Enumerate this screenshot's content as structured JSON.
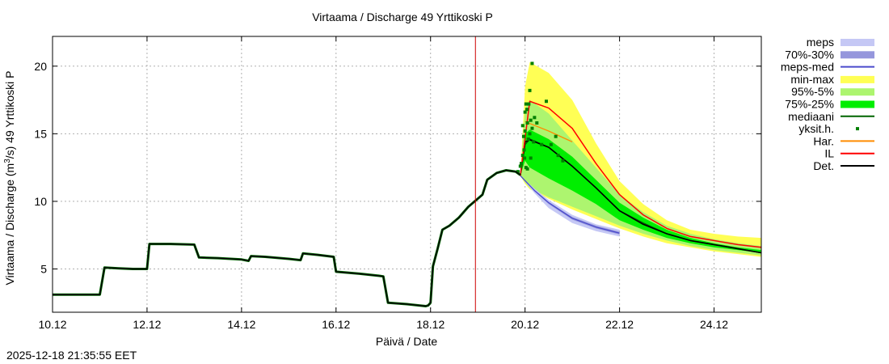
{
  "chart_data": {
    "type": "area",
    "title": "Virtaama / Discharge  49 Yrttikoski P",
    "xlabel": "Päivä / Date",
    "ylabel_main": "Virtaama / Discharge (m",
    "ylabel_sup": "3",
    "ylabel_tail": "/s)  49 Yrttikoski P",
    "x_range_days": [
      10,
      25
    ],
    "ylim": [
      1.8,
      22.2
    ],
    "grid": true,
    "x_ticks": [
      {
        "day": 10,
        "label": "10.12"
      },
      {
        "day": 12,
        "label": "12.12"
      },
      {
        "day": 14,
        "label": "14.12"
      },
      {
        "day": 16,
        "label": "16.12"
      },
      {
        "day": 18,
        "label": "18.12"
      },
      {
        "day": 20,
        "label": "20.12"
      },
      {
        "day": 22,
        "label": "22.12"
      },
      {
        "day": 24,
        "label": "24.12"
      }
    ],
    "y_ticks": [
      {
        "value": 5,
        "label": "5"
      },
      {
        "value": 10,
        "label": "10"
      },
      {
        "value": 15,
        "label": "15"
      },
      {
        "value": 20,
        "label": "20"
      }
    ],
    "forecast_start_day": 19.9,
    "colors": {
      "meps": "#c5c8f5",
      "meps_inner": "#9596dc",
      "meps_med": "#4a4acc",
      "minmax": "#ffff55",
      "p95_5": "#adf56f",
      "p75_25": "#00ee00",
      "median": "#006400",
      "single": "#008000",
      "har": "#ff8c00",
      "il": "#ff0000",
      "det": "#000000",
      "now": "#cc0000"
    },
    "legend": [
      {
        "label": "meps",
        "key": "meps",
        "style": "box"
      },
      {
        "label": "70%-30%",
        "key": "meps_inner",
        "style": "box"
      },
      {
        "label": "meps-med",
        "key": "meps_med",
        "style": "line"
      },
      {
        "label": "min-max",
        "key": "minmax",
        "style": "box"
      },
      {
        "label": "95%-5%",
        "key": "p95_5",
        "style": "box"
      },
      {
        "label": "75%-25%",
        "key": "p75_25",
        "style": "box"
      },
      {
        "label": "mediaani",
        "key": "median",
        "style": "line"
      },
      {
        "label": "yksit.h.",
        "key": "single",
        "style": "dot"
      },
      {
        "label": "Har.",
        "key": "har",
        "style": "line"
      },
      {
        "label": "IL",
        "key": "il",
        "style": "line"
      },
      {
        "label": "Det.",
        "key": "det",
        "style": "line"
      }
    ],
    "observed": [
      [
        10.0,
        3.1
      ],
      [
        10.95,
        3.1
      ],
      [
        11.0,
        3.1
      ],
      [
        11.1,
        5.1
      ],
      [
        11.4,
        5.05
      ],
      [
        11.7,
        5.0
      ],
      [
        12.0,
        5.0
      ],
      [
        12.05,
        6.85
      ],
      [
        12.5,
        6.85
      ],
      [
        13.0,
        6.8
      ],
      [
        13.1,
        5.85
      ],
      [
        13.5,
        5.8
      ],
      [
        14.0,
        5.7
      ],
      [
        14.15,
        5.6
      ],
      [
        14.2,
        5.95
      ],
      [
        14.5,
        5.9
      ],
      [
        15.0,
        5.75
      ],
      [
        15.25,
        5.65
      ],
      [
        15.3,
        6.15
      ],
      [
        15.6,
        6.05
      ],
      [
        15.95,
        5.9
      ],
      [
        16.0,
        4.8
      ],
      [
        16.5,
        4.65
      ],
      [
        16.9,
        4.5
      ],
      [
        17.0,
        4.45
      ],
      [
        17.1,
        2.5
      ],
      [
        17.5,
        2.4
      ],
      [
        17.9,
        2.25
      ],
      [
        17.95,
        2.3
      ],
      [
        18.0,
        2.5
      ],
      [
        18.05,
        5.2
      ],
      [
        18.15,
        6.5
      ],
      [
        18.25,
        7.9
      ],
      [
        18.4,
        8.2
      ],
      [
        18.6,
        8.8
      ],
      [
        18.8,
        9.6
      ],
      [
        19.0,
        10.2
      ],
      [
        19.1,
        10.5
      ],
      [
        19.2,
        11.6
      ],
      [
        19.4,
        12.1
      ],
      [
        19.6,
        12.3
      ],
      [
        19.8,
        12.2
      ],
      [
        19.9,
        11.95
      ]
    ],
    "minmax_band": {
      "x": [
        19.9,
        20.0,
        20.1,
        20.5,
        21.0,
        21.5,
        22.0,
        22.5,
        23.0,
        23.5,
        24.0,
        24.5,
        25.0
      ],
      "lo": [
        11.9,
        11.3,
        10.9,
        10.2,
        9.4,
        8.7,
        8.0,
        7.4,
        6.9,
        6.6,
        6.3,
        6.1,
        5.9
      ],
      "hi": [
        11.9,
        18.5,
        20.3,
        19.5,
        17.5,
        14.3,
        11.5,
        9.8,
        8.6,
        7.9,
        7.6,
        7.4,
        7.3
      ]
    },
    "p95_5_band": {
      "x": [
        19.9,
        20.0,
        20.1,
        20.5,
        21.0,
        21.5,
        22.0,
        22.5,
        23.0,
        23.5,
        24.0,
        24.5,
        25.0
      ],
      "lo": [
        11.9,
        11.4,
        11.0,
        10.3,
        9.6,
        8.9,
        8.2,
        7.6,
        7.1,
        6.7,
        6.4,
        6.2,
        6.0
      ],
      "hi": [
        11.9,
        16.8,
        17.5,
        16.5,
        14.5,
        12.5,
        10.5,
        9.2,
        8.2,
        7.6,
        7.2,
        6.9,
        6.7
      ]
    },
    "p75_25_band": {
      "x": [
        19.9,
        20.0,
        20.1,
        20.5,
        21.0,
        21.5,
        22.0,
        22.5,
        23.0,
        23.5,
        24.0,
        24.5,
        25.0
      ],
      "lo": [
        11.9,
        13.0,
        12.5,
        11.7,
        10.8,
        9.8,
        8.6,
        7.9,
        7.3,
        6.9,
        6.6,
        6.4,
        6.2
      ],
      "hi": [
        11.9,
        15.0,
        15.3,
        14.6,
        13.3,
        11.6,
        9.9,
        8.8,
        7.9,
        7.3,
        6.9,
        6.6,
        6.4
      ]
    },
    "meps_band": {
      "x": [
        19.9,
        20.2,
        20.5,
        21.0,
        21.5,
        22.0
      ],
      "lo": [
        11.9,
        10.6,
        9.5,
        8.4,
        7.8,
        7.4
      ],
      "hi": [
        11.9,
        10.95,
        10.1,
        9.0,
        8.3,
        7.9
      ]
    },
    "meps_inner_band": {
      "x": [
        19.9,
        20.2,
        20.5,
        21.0,
        21.5,
        22.0
      ],
      "lo": [
        11.9,
        10.75,
        9.8,
        8.65,
        8.0,
        7.55
      ],
      "hi": [
        11.9,
        10.85,
        9.95,
        8.85,
        8.2,
        7.75
      ]
    },
    "meps_med": [
      [
        19.9,
        11.9
      ],
      [
        20.2,
        10.8
      ],
      [
        20.5,
        9.9
      ],
      [
        21.0,
        8.75
      ],
      [
        21.5,
        8.1
      ],
      [
        22.0,
        7.65
      ]
    ],
    "median": [
      [
        19.9,
        11.9
      ],
      [
        20.0,
        14.2
      ],
      [
        20.1,
        14.6
      ],
      [
        20.5,
        14.0
      ],
      [
        21.0,
        12.6
      ],
      [
        21.5,
        11.0
      ],
      [
        22.0,
        9.3
      ],
      [
        22.5,
        8.4
      ],
      [
        23.0,
        7.6
      ],
      [
        23.5,
        7.1
      ],
      [
        24.0,
        6.8
      ],
      [
        24.5,
        6.5
      ],
      [
        25.0,
        6.2
      ]
    ],
    "det": [
      [
        19.9,
        11.9
      ],
      [
        20.0,
        14.4
      ],
      [
        20.1,
        14.55
      ],
      [
        20.5,
        14.0
      ],
      [
        21.0,
        12.6
      ],
      [
        21.5,
        11.0
      ],
      [
        22.0,
        9.3
      ],
      [
        22.5,
        8.3
      ],
      [
        23.0,
        7.6
      ],
      [
        23.5,
        7.1
      ],
      [
        24.0,
        6.8
      ],
      [
        24.5,
        6.5
      ],
      [
        25.0,
        6.2
      ]
    ],
    "il": [
      [
        19.9,
        11.9
      ],
      [
        20.1,
        17.4
      ],
      [
        20.5,
        16.9
      ],
      [
        21.0,
        15.4
      ],
      [
        21.5,
        12.8
      ],
      [
        22.0,
        10.5
      ],
      [
        22.5,
        9.0
      ],
      [
        23.0,
        8.0
      ],
      [
        23.5,
        7.4
      ],
      [
        24.0,
        7.1
      ],
      [
        24.5,
        6.8
      ],
      [
        25.0,
        6.6
      ]
    ],
    "har": [
      [
        20.0,
        15.9
      ],
      [
        20.5,
        15.2
      ],
      [
        21.0,
        14.4
      ]
    ],
    "single_points": [
      [
        19.95,
        15.6
      ],
      [
        19.97,
        14.8
      ],
      [
        19.98,
        13.8
      ],
      [
        19.99,
        13.2
      ],
      [
        20.0,
        16.6
      ],
      [
        20.0,
        15.2
      ],
      [
        20.02,
        17.2
      ],
      [
        20.02,
        12.5
      ],
      [
        20.04,
        16.8
      ],
      [
        20.05,
        15.8
      ],
      [
        20.05,
        12.4
      ],
      [
        20.07,
        14.6
      ],
      [
        20.08,
        17.2
      ],
      [
        20.1,
        18.2
      ],
      [
        20.1,
        15.0
      ],
      [
        20.12,
        16.0
      ],
      [
        20.12,
        13.2
      ],
      [
        20.15,
        20.2
      ],
      [
        20.15,
        15.4
      ],
      [
        20.18,
        14.4
      ],
      [
        20.2,
        16.2
      ],
      [
        20.25,
        15.8
      ],
      [
        20.35,
        14.2
      ],
      [
        20.45,
        17.4
      ],
      [
        20.55,
        14.2
      ],
      [
        20.65,
        14.8
      ],
      [
        20.7,
        13.4
      ],
      [
        20.8,
        13.0
      ],
      [
        19.85,
        12.2
      ],
      [
        19.92,
        12.8
      ],
      [
        19.95,
        13.4
      ],
      [
        19.9,
        12.6
      ]
    ]
  },
  "footer": {
    "timestamp": "2025-12-18 21:35:55 EET"
  }
}
